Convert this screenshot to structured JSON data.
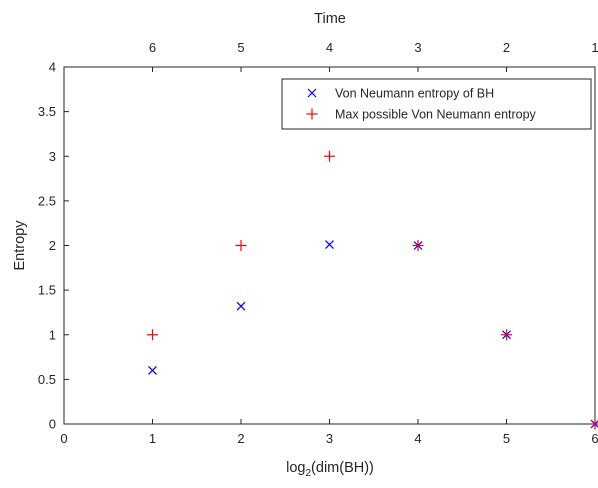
{
  "chart_data": {
    "type": "scatter",
    "title": "",
    "xlabel": "log",
    "xlabel_subscript": "2",
    "xlabel_suffix": "(dim(BH))",
    "ylabel": "Entropy",
    "top_xlabel": "Time",
    "xlim": [
      0,
      6
    ],
    "ylim": [
      0,
      4
    ],
    "x_ticks": [
      0,
      1,
      2,
      3,
      4,
      5,
      6
    ],
    "x_tick_labels": [
      "0",
      "1",
      "2",
      "3",
      "4",
      "5",
      "6"
    ],
    "y_ticks": [
      0,
      0.5,
      1,
      1.5,
      2,
      2.5,
      3,
      3.5,
      4
    ],
    "y_tick_labels": [
      "0",
      "0.5",
      "1",
      "1.5",
      "2",
      "2.5",
      "3",
      "3.5",
      "4"
    ],
    "top_ticks": [
      1,
      2,
      3,
      4,
      5,
      6
    ],
    "top_tick_labels": [
      "6",
      "5",
      "4",
      "3",
      "2",
      "1"
    ],
    "grid": false,
    "legend_position": "top-right",
    "series": [
      {
        "name": "Von Neumann entropy of BH",
        "marker": "x",
        "color": "#0000ff",
        "x": [
          1,
          2,
          3,
          4,
          5,
          6
        ],
        "y": [
          0.6,
          1.32,
          2.01,
          2.0,
          1.0,
          0.0
        ]
      },
      {
        "name": "Max possible Von Neumann entropy",
        "marker": "+",
        "color": "#ff0000",
        "x": [
          1,
          2,
          3,
          4,
          5,
          6
        ],
        "y": [
          1,
          2,
          3,
          2,
          1,
          0
        ]
      }
    ]
  }
}
